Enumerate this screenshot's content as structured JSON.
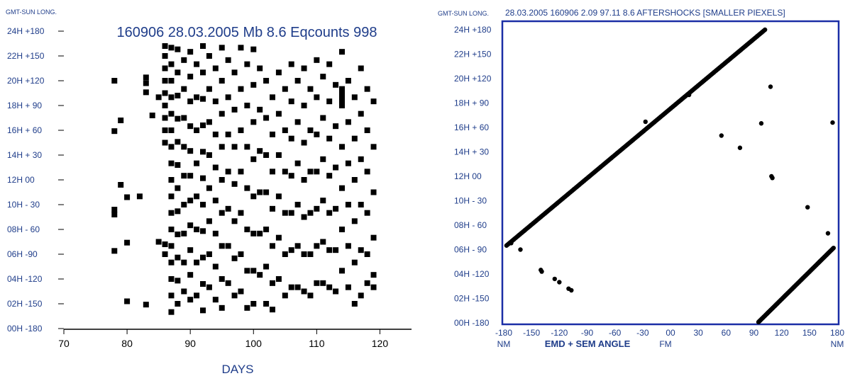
{
  "chart_data": [
    {
      "type": "scatter",
      "title": "160906 28.03.2005 Mb 8.6 Eqcounts 998",
      "corner_label": "GMT-SUN LONG.",
      "xlabel": "DAYS",
      "xlim": [
        70,
        125
      ],
      "x_ticks": [
        "70",
        "80",
        "90",
        "100",
        "110",
        "120"
      ],
      "x_tick_values": [
        70,
        80,
        90,
        100,
        110,
        120
      ],
      "ylim": [
        -180,
        180
      ],
      "y_ticks": [
        "00H -180",
        "02H -150",
        "04H -120",
        "06H -90",
        "08H - 60",
        "10H - 30",
        "12H   00",
        "14H + 30",
        "16H + 60",
        "18H + 90",
        "20H +120",
        "22H +150",
        "24H +180"
      ],
      "y_tick_values": [
        -180,
        -150,
        -120,
        -90,
        -60,
        -30,
        0,
        30,
        60,
        90,
        120,
        150,
        180
      ],
      "marker": "square",
      "grid": false,
      "points": [
        [
          78,
          120
        ],
        [
          78,
          59
        ],
        [
          78,
          -86
        ],
        [
          78,
          -42
        ],
        [
          78,
          -36
        ],
        [
          79,
          -6
        ],
        [
          79,
          72
        ],
        [
          80,
          -21
        ],
        [
          80,
          -76
        ],
        [
          80,
          -147
        ],
        [
          82,
          -20
        ],
        [
          83,
          124
        ],
        [
          83,
          117
        ],
        [
          83,
          106
        ],
        [
          83,
          -151
        ],
        [
          84,
          78
        ],
        [
          85,
          100
        ],
        [
          85,
          -75
        ],
        [
          86,
          162
        ],
        [
          86,
          150
        ],
        [
          86,
          135
        ],
        [
          86,
          120
        ],
        [
          86,
          105
        ],
        [
          86,
          90
        ],
        [
          86,
          75
        ],
        [
          86,
          60
        ],
        [
          86,
          45
        ],
        [
          86,
          -90
        ],
        [
          86,
          -78
        ],
        [
          87,
          160
        ],
        [
          87,
          140
        ],
        [
          87,
          120
        ],
        [
          87,
          100
        ],
        [
          87,
          80
        ],
        [
          87,
          60
        ],
        [
          87,
          40
        ],
        [
          87,
          20
        ],
        [
          87,
          0
        ],
        [
          87,
          -20
        ],
        [
          87,
          -40
        ],
        [
          87,
          -60
        ],
        [
          87,
          -80
        ],
        [
          87,
          -100
        ],
        [
          87,
          -120
        ],
        [
          87,
          -140
        ],
        [
          87,
          -160
        ],
        [
          88,
          158
        ],
        [
          88,
          130
        ],
        [
          88,
          102
        ],
        [
          88,
          74
        ],
        [
          88,
          46
        ],
        [
          88,
          18
        ],
        [
          88,
          -10
        ],
        [
          88,
          -38
        ],
        [
          88,
          -66
        ],
        [
          88,
          -94
        ],
        [
          88,
          -122
        ],
        [
          88,
          -150
        ],
        [
          89,
          145
        ],
        [
          89,
          110
        ],
        [
          89,
          75
        ],
        [
          89,
          40
        ],
        [
          89,
          5
        ],
        [
          89,
          -30
        ],
        [
          89,
          -65
        ],
        [
          89,
          -100
        ],
        [
          89,
          -135
        ],
        [
          90,
          155
        ],
        [
          90,
          125
        ],
        [
          90,
          95
        ],
        [
          90,
          65
        ],
        [
          90,
          35
        ],
        [
          90,
          5
        ],
        [
          90,
          -25
        ],
        [
          90,
          -55
        ],
        [
          90,
          -85
        ],
        [
          90,
          -115
        ],
        [
          90,
          -145
        ],
        [
          91,
          140
        ],
        [
          91,
          100
        ],
        [
          91,
          60
        ],
        [
          91,
          20
        ],
        [
          91,
          -20
        ],
        [
          91,
          -60
        ],
        [
          91,
          -100
        ],
        [
          91,
          -140
        ],
        [
          92,
          162
        ],
        [
          92,
          130
        ],
        [
          92,
          98
        ],
        [
          92,
          66
        ],
        [
          92,
          34
        ],
        [
          92,
          2
        ],
        [
          92,
          -30
        ],
        [
          92,
          -62
        ],
        [
          92,
          -94
        ],
        [
          92,
          -126
        ],
        [
          92,
          -158
        ],
        [
          93,
          150
        ],
        [
          93,
          110
        ],
        [
          93,
          70
        ],
        [
          93,
          30
        ],
        [
          93,
          -10
        ],
        [
          93,
          -50
        ],
        [
          93,
          -90
        ],
        [
          93,
          -130
        ],
        [
          94,
          135
        ],
        [
          94,
          95
        ],
        [
          94,
          55
        ],
        [
          94,
          15
        ],
        [
          94,
          -25
        ],
        [
          94,
          -65
        ],
        [
          94,
          -105
        ],
        [
          94,
          -145
        ],
        [
          95,
          160
        ],
        [
          95,
          120
        ],
        [
          95,
          80
        ],
        [
          95,
          40
        ],
        [
          95,
          0
        ],
        [
          95,
          -40
        ],
        [
          95,
          -80
        ],
        [
          95,
          -120
        ],
        [
          95,
          -155
        ],
        [
          96,
          145
        ],
        [
          96,
          100
        ],
        [
          96,
          55
        ],
        [
          96,
          10
        ],
        [
          96,
          -35
        ],
        [
          96,
          -80
        ],
        [
          96,
          -125
        ],
        [
          97,
          130
        ],
        [
          97,
          85
        ],
        [
          97,
          40
        ],
        [
          97,
          -5
        ],
        [
          97,
          -50
        ],
        [
          97,
          -95
        ],
        [
          97,
          -140
        ],
        [
          98,
          160
        ],
        [
          98,
          110
        ],
        [
          98,
          60
        ],
        [
          98,
          10
        ],
        [
          98,
          -40
        ],
        [
          98,
          -90
        ],
        [
          98,
          -135
        ],
        [
          99,
          140
        ],
        [
          99,
          90
        ],
        [
          99,
          40
        ],
        [
          99,
          -10
        ],
        [
          99,
          -60
        ],
        [
          99,
          -110
        ],
        [
          99,
          -155
        ],
        [
          100,
          158
        ],
        [
          100,
          115
        ],
        [
          100,
          70
        ],
        [
          100,
          25
        ],
        [
          100,
          -20
        ],
        [
          100,
          -65
        ],
        [
          100,
          -110
        ],
        [
          100,
          -150
        ],
        [
          101,
          135
        ],
        [
          101,
          85
        ],
        [
          101,
          35
        ],
        [
          101,
          -15
        ],
        [
          101,
          -65
        ],
        [
          101,
          -115
        ],
        [
          102,
          120
        ],
        [
          102,
          75
        ],
        [
          102,
          30
        ],
        [
          102,
          -15
        ],
        [
          102,
          -60
        ],
        [
          102,
          -105
        ],
        [
          102,
          -150
        ],
        [
          103,
          100
        ],
        [
          103,
          55
        ],
        [
          103,
          10
        ],
        [
          103,
          -35
        ],
        [
          103,
          -80
        ],
        [
          103,
          -125
        ],
        [
          103,
          -157
        ],
        [
          104,
          130
        ],
        [
          104,
          80
        ],
        [
          104,
          30
        ],
        [
          104,
          -20
        ],
        [
          104,
          -70
        ],
        [
          104,
          -120
        ],
        [
          105,
          110
        ],
        [
          105,
          60
        ],
        [
          105,
          10
        ],
        [
          105,
          -40
        ],
        [
          105,
          -90
        ],
        [
          105,
          -140
        ],
        [
          106,
          140
        ],
        [
          106,
          95
        ],
        [
          106,
          50
        ],
        [
          106,
          5
        ],
        [
          106,
          -40
        ],
        [
          106,
          -85
        ],
        [
          106,
          -130
        ],
        [
          107,
          120
        ],
        [
          107,
          70
        ],
        [
          107,
          20
        ],
        [
          107,
          -30
        ],
        [
          107,
          -80
        ],
        [
          107,
          -130
        ],
        [
          108,
          135
        ],
        [
          108,
          90
        ],
        [
          108,
          45
        ],
        [
          108,
          0
        ],
        [
          108,
          -45
        ],
        [
          108,
          -90
        ],
        [
          108,
          -135
        ],
        [
          109,
          110
        ],
        [
          109,
          60
        ],
        [
          109,
          10
        ],
        [
          109,
          -40
        ],
        [
          109,
          -90
        ],
        [
          109,
          -140
        ],
        [
          110,
          145
        ],
        [
          110,
          100
        ],
        [
          110,
          55
        ],
        [
          110,
          10
        ],
        [
          110,
          -35
        ],
        [
          110,
          -80
        ],
        [
          110,
          -125
        ],
        [
          111,
          125
        ],
        [
          111,
          75
        ],
        [
          111,
          25
        ],
        [
          111,
          -25
        ],
        [
          111,
          -75
        ],
        [
          111,
          -125
        ],
        [
          112,
          140
        ],
        [
          112,
          95
        ],
        [
          112,
          50
        ],
        [
          112,
          5
        ],
        [
          112,
          -40
        ],
        [
          112,
          -85
        ],
        [
          112,
          -130
        ],
        [
          113,
          115
        ],
        [
          113,
          65
        ],
        [
          113,
          15
        ],
        [
          113,
          -35
        ],
        [
          113,
          -85
        ],
        [
          113,
          -135
        ],
        [
          114,
          155
        ],
        [
          114,
          110
        ],
        [
          114,
          105
        ],
        [
          114,
          100
        ],
        [
          114,
          95
        ],
        [
          114,
          90
        ],
        [
          114,
          40
        ],
        [
          114,
          -10
        ],
        [
          114,
          -60
        ],
        [
          114,
          -110
        ],
        [
          115,
          120
        ],
        [
          115,
          70
        ],
        [
          115,
          20
        ],
        [
          115,
          -30
        ],
        [
          115,
          -80
        ],
        [
          115,
          -130
        ],
        [
          116,
          100
        ],
        [
          116,
          50
        ],
        [
          116,
          0
        ],
        [
          116,
          -50
        ],
        [
          116,
          -100
        ],
        [
          116,
          -150
        ],
        [
          117,
          135
        ],
        [
          117,
          80
        ],
        [
          117,
          25
        ],
        [
          117,
          -30
        ],
        [
          117,
          -85
        ],
        [
          117,
          -140
        ],
        [
          118,
          110
        ],
        [
          118,
          60
        ],
        [
          118,
          10
        ],
        [
          118,
          -40
        ],
        [
          118,
          -90
        ],
        [
          118,
          -125
        ],
        [
          119,
          95
        ],
        [
          119,
          40
        ],
        [
          119,
          -15
        ],
        [
          119,
          -70
        ],
        [
          119,
          -115
        ],
        [
          119,
          -130
        ]
      ]
    },
    {
      "type": "scatter",
      "title": "28.03.2005 160906 2.09 97.11 8.6   AFTERSHOCKS [SMALLER PIEXELS]",
      "corner_label": "GMT-SUN LONG.",
      "xlabel": "EMD + SEM ANGLE",
      "x_label_left": "NM",
      "x_label_mid": "FM",
      "x_label_right": "NM",
      "xlim": [
        -180,
        180
      ],
      "x_ticks": [
        "-180",
        "-150",
        "-120",
        "-90",
        "-60",
        "-30",
        "00",
        "30",
        "60",
        "90",
        "120",
        "150",
        "180"
      ],
      "x_tick_values": [
        -180,
        -150,
        -120,
        -90,
        -60,
        -30,
        0,
        30,
        60,
        90,
        120,
        150,
        180
      ],
      "ylim": [
        -180,
        180
      ],
      "y_ticks": [
        "00H -180",
        "02H -150",
        "04H -120",
        "06H - 90",
        "08H - 60",
        "10H - 30",
        "12H   00",
        "14H + 30",
        "16H + 60",
        "18H + 90",
        "20H +120",
        "22H +150",
        "24H +180"
      ],
      "y_tick_values": [
        -180,
        -150,
        -120,
        -90,
        -60,
        -30,
        0,
        30,
        60,
        90,
        120,
        150,
        180
      ],
      "marker": "dot",
      "grid": false,
      "series": [
        {
          "x_start": -177,
          "y_start": -85,
          "x_end": 102,
          "y_end": 180,
          "count": 240
        },
        {
          "x_start": 95,
          "y_start": -179,
          "x_end": 176,
          "y_end": -88,
          "count": 110
        }
      ],
      "points": [
        [
          -172,
          -82
        ],
        [
          -162,
          -90
        ],
        [
          -140,
          -115
        ],
        [
          -139,
          -117
        ],
        [
          -125,
          -126
        ],
        [
          -120,
          -130
        ],
        [
          -110,
          -138
        ],
        [
          -107,
          -140
        ],
        [
          -27,
          67
        ],
        [
          20,
          100
        ],
        [
          55,
          50
        ],
        [
          75,
          35
        ],
        [
          98,
          65
        ],
        [
          108,
          110
        ],
        [
          109,
          0
        ],
        [
          110,
          -2
        ],
        [
          148,
          -38
        ],
        [
          170,
          -70
        ],
        [
          175,
          66
        ]
      ]
    }
  ]
}
